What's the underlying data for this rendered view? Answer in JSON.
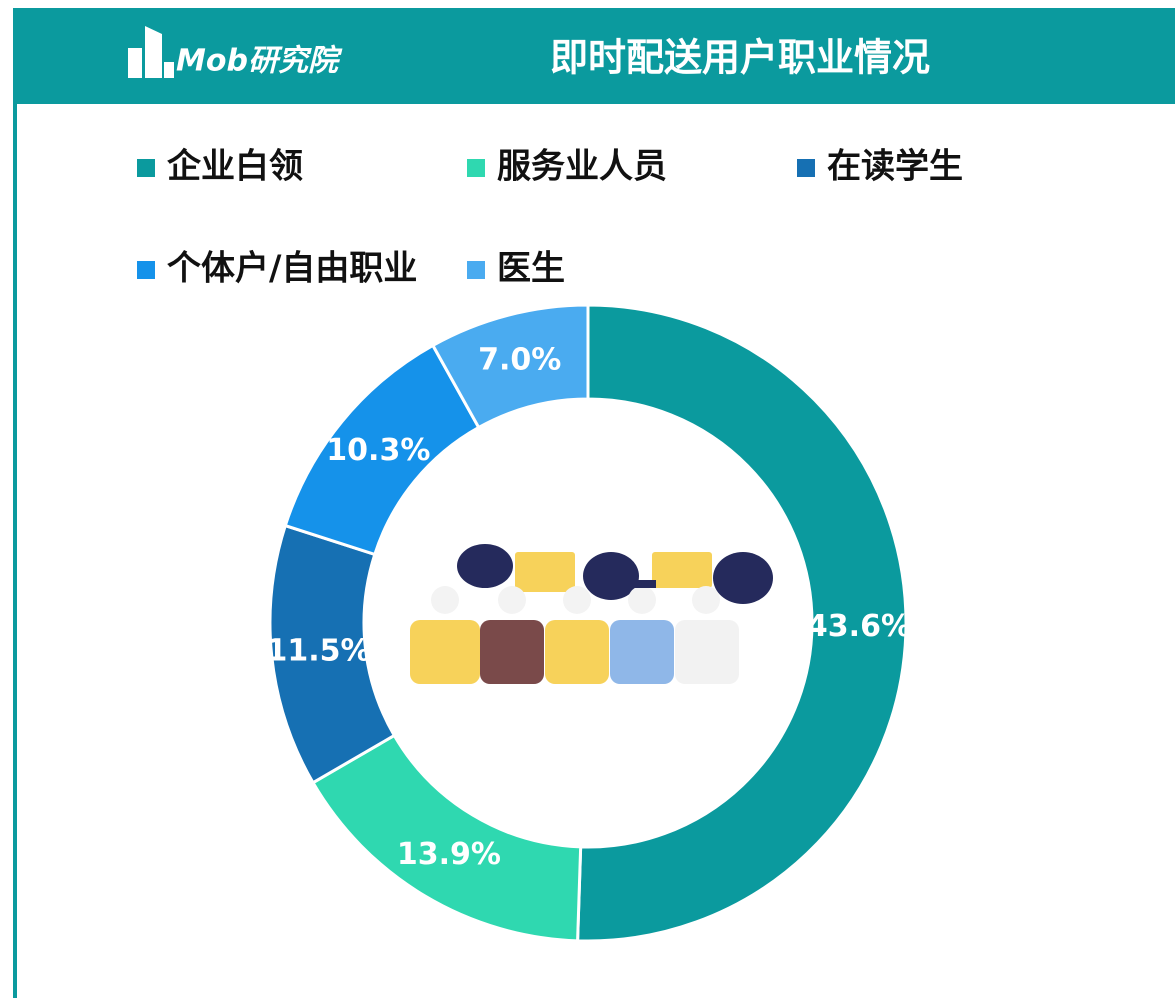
{
  "brand": "Mob研究院",
  "chart_data": {
    "type": "donut",
    "title": "即时配送用户职业情况",
    "categories": [
      "企业白领",
      "服务业人员",
      "在读学生",
      "个体户/自由职业",
      "医生"
    ],
    "values": [
      43.6,
      13.9,
      11.5,
      10.3,
      7.0
    ],
    "value_labels": [
      "43.6%",
      "13.9%",
      "11.5%",
      "10.3%",
      "7.0%"
    ],
    "colors": [
      "#0b9a9e",
      "#2fd8b0",
      "#1670b3",
      "#1592ea",
      "#4aabf0"
    ],
    "legend": "top"
  }
}
